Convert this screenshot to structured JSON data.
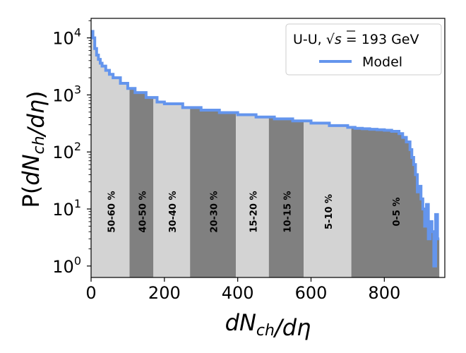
{
  "chart_data": {
    "type": "area",
    "xlabel": "dN_ch/dη",
    "ylabel": "P(dN_ch/dη)",
    "yscale": "log",
    "xlim": [
      0,
      965
    ],
    "ylim": [
      0.63,
      22000
    ],
    "x_ticks": [
      {
        "value": 0,
        "label": "0"
      },
      {
        "value": 200,
        "label": "200"
      },
      {
        "value": 400,
        "label": "400"
      },
      {
        "value": 600,
        "label": "600"
      },
      {
        "value": 800,
        "label": "800"
      }
    ],
    "y_ticks": [
      {
        "value": 1,
        "base": "10",
        "exp": "0"
      },
      {
        "value": 10,
        "base": "10",
        "exp": "1"
      },
      {
        "value": 100,
        "base": "10",
        "exp": "2"
      },
      {
        "value": 1000,
        "base": "10",
        "exp": "3"
      },
      {
        "value": 10000,
        "base": "10",
        "exp": "4"
      }
    ],
    "legend": {
      "position": "top-right",
      "title_main": "U-U, ",
      "title_sqrt": "√",
      "title_var": "s",
      "title_tail": " = 193 GeV",
      "series_label": "Model"
    },
    "centrality_bands": [
      {
        "label": "50-60 %",
        "x_start": 0,
        "x_end": 105,
        "color": "#d3d3d3"
      },
      {
        "label": "40-50 %",
        "x_start": 105,
        "x_end": 170,
        "color": "#808080"
      },
      {
        "label": "30-40 %",
        "x_start": 170,
        "x_end": 270,
        "color": "#d3d3d3"
      },
      {
        "label": "20-30 %",
        "x_start": 270,
        "x_end": 395,
        "color": "#808080"
      },
      {
        "label": "15-20 %",
        "x_start": 395,
        "x_end": 485,
        "color": "#d3d3d3"
      },
      {
        "label": "10-15 %",
        "x_start": 485,
        "x_end": 580,
        "color": "#808080"
      },
      {
        "label": "5-10 %",
        "x_start": 580,
        "x_end": 710,
        "color": "#d3d3d3"
      },
      {
        "label": "0-5 %",
        "x_start": 710,
        "x_end": 950,
        "color": "#808080"
      }
    ],
    "series": [
      {
        "name": "Model",
        "color": "#6495ed",
        "x": [
          0,
          5,
          10,
          15,
          20,
          25,
          30,
          40,
          50,
          60,
          80,
          100,
          120,
          150,
          180,
          200,
          250,
          300,
          350,
          400,
          450,
          500,
          550,
          600,
          650,
          700,
          720,
          740,
          760,
          780,
          800,
          820,
          840,
          850,
          860,
          870,
          875,
          880,
          885,
          890,
          895,
          900,
          905,
          910,
          915,
          920,
          925,
          930,
          935,
          940,
          945
        ],
        "y": [
          13000,
          10000,
          6500,
          5000,
          4200,
          3600,
          3200,
          2700,
          2300,
          2000,
          1600,
          1300,
          1100,
          900,
          750,
          700,
          600,
          540,
          490,
          450,
          410,
          380,
          350,
          320,
          290,
          270,
          260,
          255,
          250,
          245,
          240,
          230,
          210,
          180,
          150,
          110,
          80,
          60,
          40,
          20,
          25,
          15,
          10,
          5,
          12,
          3,
          6,
          4,
          1,
          8,
          3
        ]
      }
    ]
  }
}
